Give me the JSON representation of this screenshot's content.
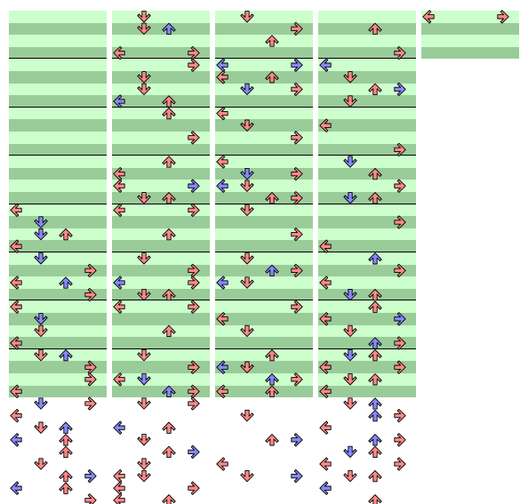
{
  "colors": {
    "background": "#ffffff",
    "row_light": "#ccffcc",
    "row_dark": "#99cc99",
    "beat_line": "#000000",
    "note_red": "#ff8888",
    "note_blue": "#8888ff"
  },
  "chart_data": {
    "type": "step-chart",
    "panels": 4,
    "directions": [
      "left",
      "down",
      "up",
      "right"
    ],
    "columns": [
      {
        "measures": 8,
        "notes": [
          {
            "row": 16,
            "dir": "left",
            "color": "red"
          },
          {
            "row": 17,
            "dir": "down",
            "color": "blue"
          },
          {
            "row": 18,
            "dir": "down",
            "color": "blue"
          },
          {
            "row": 18,
            "dir": "up",
            "color": "red"
          },
          {
            "row": 19,
            "dir": "left",
            "color": "red"
          },
          {
            "row": 20,
            "dir": "down",
            "color": "blue"
          },
          {
            "row": 21,
            "dir": "right",
            "color": "red"
          },
          {
            "row": 22,
            "dir": "up",
            "color": "blue"
          },
          {
            "row": 22,
            "dir": "left",
            "color": "red"
          },
          {
            "row": 23,
            "dir": "right",
            "color": "red"
          },
          {
            "row": 24,
            "dir": "left",
            "color": "red"
          },
          {
            "row": 25,
            "dir": "down",
            "color": "blue"
          },
          {
            "row": 26,
            "dir": "down",
            "color": "red"
          },
          {
            "row": 27,
            "dir": "left",
            "color": "red"
          },
          {
            "row": 28,
            "dir": "down",
            "color": "red"
          },
          {
            "row": 28,
            "dir": "up",
            "color": "blue"
          },
          {
            "row": 29,
            "dir": "right",
            "color": "red"
          },
          {
            "row": 30,
            "dir": "right",
            "color": "red"
          },
          {
            "row": 31,
            "dir": "left",
            "color": "red"
          },
          {
            "row": 32,
            "dir": "down",
            "color": "blue"
          },
          {
            "row": 32,
            "dir": "right",
            "color": "red"
          },
          {
            "row": 33,
            "dir": "left",
            "color": "red"
          },
          {
            "row": 34,
            "dir": "up",
            "color": "blue"
          },
          {
            "row": 34,
            "dir": "down",
            "color": "red"
          },
          {
            "row": 35,
            "dir": "left",
            "color": "blue"
          },
          {
            "row": 35,
            "dir": "up",
            "color": "red"
          },
          {
            "row": 36,
            "dir": "up",
            "color": "red"
          },
          {
            "row": 37,
            "dir": "down",
            "color": "red"
          },
          {
            "row": 38,
            "dir": "up",
            "color": "red"
          },
          {
            "row": 38,
            "dir": "right",
            "color": "blue"
          },
          {
            "row": 39,
            "dir": "up",
            "color": "red"
          },
          {
            "row": 39,
            "dir": "left",
            "color": "blue"
          },
          {
            "row": 40,
            "dir": "right",
            "color": "red"
          }
        ]
      },
      {
        "measures": 8,
        "notes": [
          {
            "row": 0,
            "dir": "down",
            "color": "red"
          },
          {
            "row": 1,
            "dir": "up",
            "color": "blue"
          },
          {
            "row": 1,
            "dir": "down",
            "color": "red"
          },
          {
            "row": 3,
            "dir": "right",
            "color": "red"
          },
          {
            "row": 3,
            "dir": "left",
            "color": "red"
          },
          {
            "row": 4,
            "dir": "right",
            "color": "red"
          },
          {
            "row": 5,
            "dir": "down",
            "color": "red"
          },
          {
            "row": 6,
            "dir": "down",
            "color": "red"
          },
          {
            "row": 7,
            "dir": "left",
            "color": "blue"
          },
          {
            "row": 7,
            "dir": "up",
            "color": "red"
          },
          {
            "row": 8,
            "dir": "up",
            "color": "red"
          },
          {
            "row": 10,
            "dir": "right",
            "color": "red"
          },
          {
            "row": 12,
            "dir": "up",
            "color": "red"
          },
          {
            "row": 13,
            "dir": "left",
            "color": "red"
          },
          {
            "row": 14,
            "dir": "right",
            "color": "blue"
          },
          {
            "row": 14,
            "dir": "left",
            "color": "red"
          },
          {
            "row": 15,
            "dir": "down",
            "color": "red"
          },
          {
            "row": 15,
            "dir": "up",
            "color": "red"
          },
          {
            "row": 16,
            "dir": "left",
            "color": "red"
          },
          {
            "row": 16,
            "dir": "right",
            "color": "red"
          },
          {
            "row": 18,
            "dir": "up",
            "color": "red"
          },
          {
            "row": 20,
            "dir": "down",
            "color": "red"
          },
          {
            "row": 21,
            "dir": "right",
            "color": "red"
          },
          {
            "row": 22,
            "dir": "right",
            "color": "red"
          },
          {
            "row": 22,
            "dir": "left",
            "color": "blue"
          },
          {
            "row": 23,
            "dir": "down",
            "color": "red"
          },
          {
            "row": 23,
            "dir": "up",
            "color": "red"
          },
          {
            "row": 24,
            "dir": "left",
            "color": "red"
          },
          {
            "row": 24,
            "dir": "right",
            "color": "red"
          },
          {
            "row": 26,
            "dir": "up",
            "color": "red"
          },
          {
            "row": 28,
            "dir": "down",
            "color": "red"
          },
          {
            "row": 29,
            "dir": "right",
            "color": "red"
          },
          {
            "row": 30,
            "dir": "down",
            "color": "blue"
          },
          {
            "row": 30,
            "dir": "left",
            "color": "red"
          },
          {
            "row": 31,
            "dir": "up",
            "color": "blue"
          },
          {
            "row": 31,
            "dir": "right",
            "color": "red"
          },
          {
            "row": 32,
            "dir": "down",
            "color": "red"
          },
          {
            "row": 32,
            "dir": "right",
            "color": "red"
          },
          {
            "row": 34,
            "dir": "left",
            "color": "blue"
          },
          {
            "row": 34,
            "dir": "up",
            "color": "red"
          },
          {
            "row": 35,
            "dir": "down",
            "color": "red"
          },
          {
            "row": 36,
            "dir": "up",
            "color": "red"
          },
          {
            "row": 36,
            "dir": "right",
            "color": "blue"
          },
          {
            "row": 37,
            "dir": "down",
            "color": "red"
          },
          {
            "row": 38,
            "dir": "left",
            "color": "red"
          },
          {
            "row": 38,
            "dir": "down",
            "color": "red"
          },
          {
            "row": 39,
            "dir": "right",
            "color": "red"
          },
          {
            "row": 39,
            "dir": "left",
            "color": "red"
          },
          {
            "row": 40,
            "dir": "up",
            "color": "red"
          },
          {
            "row": 40,
            "dir": "left",
            "color": "red"
          }
        ]
      },
      {
        "measures": 8,
        "notes": [
          {
            "row": 0,
            "dir": "down",
            "color": "red"
          },
          {
            "row": 1,
            "dir": "right",
            "color": "red"
          },
          {
            "row": 2,
            "dir": "up",
            "color": "red"
          },
          {
            "row": 4,
            "dir": "left",
            "color": "blue"
          },
          {
            "row": 4,
            "dir": "right",
            "color": "blue"
          },
          {
            "row": 5,
            "dir": "left",
            "color": "red"
          },
          {
            "row": 5,
            "dir": "up",
            "color": "red"
          },
          {
            "row": 6,
            "dir": "down",
            "color": "blue"
          },
          {
            "row": 6,
            "dir": "right",
            "color": "red"
          },
          {
            "row": 8,
            "dir": "left",
            "color": "red"
          },
          {
            "row": 9,
            "dir": "down",
            "color": "red"
          },
          {
            "row": 10,
            "dir": "right",
            "color": "red"
          },
          {
            "row": 12,
            "dir": "left",
            "color": "red"
          },
          {
            "row": 13,
            "dir": "down",
            "color": "blue"
          },
          {
            "row": 13,
            "dir": "right",
            "color": "red"
          },
          {
            "row": 14,
            "dir": "left",
            "color": "blue"
          },
          {
            "row": 14,
            "dir": "down",
            "color": "red"
          },
          {
            "row": 15,
            "dir": "up",
            "color": "red"
          },
          {
            "row": 15,
            "dir": "right",
            "color": "red"
          },
          {
            "row": 16,
            "dir": "down",
            "color": "red"
          },
          {
            "row": 18,
            "dir": "right",
            "color": "red"
          },
          {
            "row": 20,
            "dir": "down",
            "color": "red"
          },
          {
            "row": 21,
            "dir": "up",
            "color": "blue"
          },
          {
            "row": 21,
            "dir": "right",
            "color": "red"
          },
          {
            "row": 22,
            "dir": "left",
            "color": "blue"
          },
          {
            "row": 22,
            "dir": "down",
            "color": "red"
          },
          {
            "row": 24,
            "dir": "right",
            "color": "red"
          },
          {
            "row": 25,
            "dir": "left",
            "color": "red"
          },
          {
            "row": 26,
            "dir": "down",
            "color": "red"
          },
          {
            "row": 28,
            "dir": "up",
            "color": "red"
          },
          {
            "row": 29,
            "dir": "left",
            "color": "blue"
          },
          {
            "row": 29,
            "dir": "down",
            "color": "red"
          },
          {
            "row": 30,
            "dir": "up",
            "color": "blue"
          },
          {
            "row": 30,
            "dir": "right",
            "color": "red"
          },
          {
            "row": 31,
            "dir": "up",
            "color": "red"
          },
          {
            "row": 31,
            "dir": "left",
            "color": "red"
          },
          {
            "row": 33,
            "dir": "down",
            "color": "red"
          },
          {
            "row": 35,
            "dir": "up",
            "color": "red"
          },
          {
            "row": 35,
            "dir": "right",
            "color": "blue"
          },
          {
            "row": 37,
            "dir": "left",
            "color": "red"
          },
          {
            "row": 38,
            "dir": "right",
            "color": "blue"
          },
          {
            "row": 38,
            "dir": "down",
            "color": "red"
          }
        ]
      },
      {
        "measures": 8,
        "notes": [
          {
            "row": 1,
            "dir": "up",
            "color": "red"
          },
          {
            "row": 3,
            "dir": "right",
            "color": "red"
          },
          {
            "row": 4,
            "dir": "left",
            "color": "blue"
          },
          {
            "row": 5,
            "dir": "down",
            "color": "red"
          },
          {
            "row": 6,
            "dir": "up",
            "color": "red"
          },
          {
            "row": 6,
            "dir": "right",
            "color": "blue"
          },
          {
            "row": 7,
            "dir": "down",
            "color": "red"
          },
          {
            "row": 9,
            "dir": "left",
            "color": "red"
          },
          {
            "row": 11,
            "dir": "right",
            "color": "red"
          },
          {
            "row": 12,
            "dir": "down",
            "color": "blue"
          },
          {
            "row": 13,
            "dir": "up",
            "color": "red"
          },
          {
            "row": 14,
            "dir": "right",
            "color": "red"
          },
          {
            "row": 15,
            "dir": "down",
            "color": "blue"
          },
          {
            "row": 15,
            "dir": "up",
            "color": "red"
          },
          {
            "row": 17,
            "dir": "right",
            "color": "red"
          },
          {
            "row": 19,
            "dir": "left",
            "color": "red"
          },
          {
            "row": 20,
            "dir": "up",
            "color": "blue"
          },
          {
            "row": 21,
            "dir": "right",
            "color": "red"
          },
          {
            "row": 22,
            "dir": "left",
            "color": "red"
          },
          {
            "row": 23,
            "dir": "down",
            "color": "blue"
          },
          {
            "row": 23,
            "dir": "up",
            "color": "red"
          },
          {
            "row": 24,
            "dir": "up",
            "color": "red"
          },
          {
            "row": 25,
            "dir": "right",
            "color": "blue"
          },
          {
            "row": 25,
            "dir": "left",
            "color": "red"
          },
          {
            "row": 26,
            "dir": "down",
            "color": "red"
          },
          {
            "row": 27,
            "dir": "up",
            "color": "blue"
          },
          {
            "row": 27,
            "dir": "right",
            "color": "red"
          },
          {
            "row": 28,
            "dir": "down",
            "color": "blue"
          },
          {
            "row": 28,
            "dir": "up",
            "color": "red"
          },
          {
            "row": 29,
            "dir": "right",
            "color": "red"
          },
          {
            "row": 29,
            "dir": "left",
            "color": "red"
          },
          {
            "row": 30,
            "dir": "down",
            "color": "red"
          },
          {
            "row": 30,
            "dir": "up",
            "color": "red"
          },
          {
            "row": 31,
            "dir": "left",
            "color": "red"
          },
          {
            "row": 32,
            "dir": "down",
            "color": "red"
          },
          {
            "row": 32,
            "dir": "up",
            "color": "blue"
          },
          {
            "row": 33,
            "dir": "up",
            "color": "blue"
          },
          {
            "row": 33,
            "dir": "right",
            "color": "red"
          },
          {
            "row": 34,
            "dir": "left",
            "color": "red"
          },
          {
            "row": 35,
            "dir": "up",
            "color": "blue"
          },
          {
            "row": 35,
            "dir": "right",
            "color": "red"
          },
          {
            "row": 36,
            "dir": "down",
            "color": "blue"
          },
          {
            "row": 36,
            "dir": "up",
            "color": "red"
          },
          {
            "row": 37,
            "dir": "right",
            "color": "red"
          },
          {
            "row": 37,
            "dir": "left",
            "color": "red"
          },
          {
            "row": 38,
            "dir": "down",
            "color": "red"
          },
          {
            "row": 38,
            "dir": "up",
            "color": "red"
          },
          {
            "row": 39,
            "dir": "left",
            "color": "blue"
          },
          {
            "row": 40,
            "dir": "up",
            "color": "red"
          }
        ]
      },
      {
        "measures": 1,
        "notes": [
          {
            "row": 0,
            "dir": "right",
            "color": "red"
          },
          {
            "row": 0,
            "dir": "left",
            "color": "red"
          }
        ]
      }
    ]
  }
}
